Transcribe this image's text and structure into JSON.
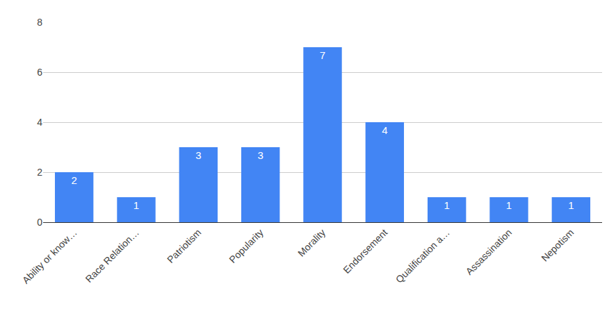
{
  "chart_data": {
    "type": "bar",
    "categories": [
      "Ability or know…",
      "Race Relation…",
      "Patriotism",
      "Popularity",
      "Morality",
      "Endorsement",
      "Qualification a…",
      "Assassination",
      "Nepotism"
    ],
    "values": [
      2,
      1,
      3,
      3,
      7,
      4,
      1,
      1,
      1
    ],
    "color": "#4285f4",
    "ylim": [
      0,
      8
    ],
    "yticks": [
      0,
      2,
      4,
      6,
      8
    ],
    "grid": true,
    "data_labels": true
  }
}
